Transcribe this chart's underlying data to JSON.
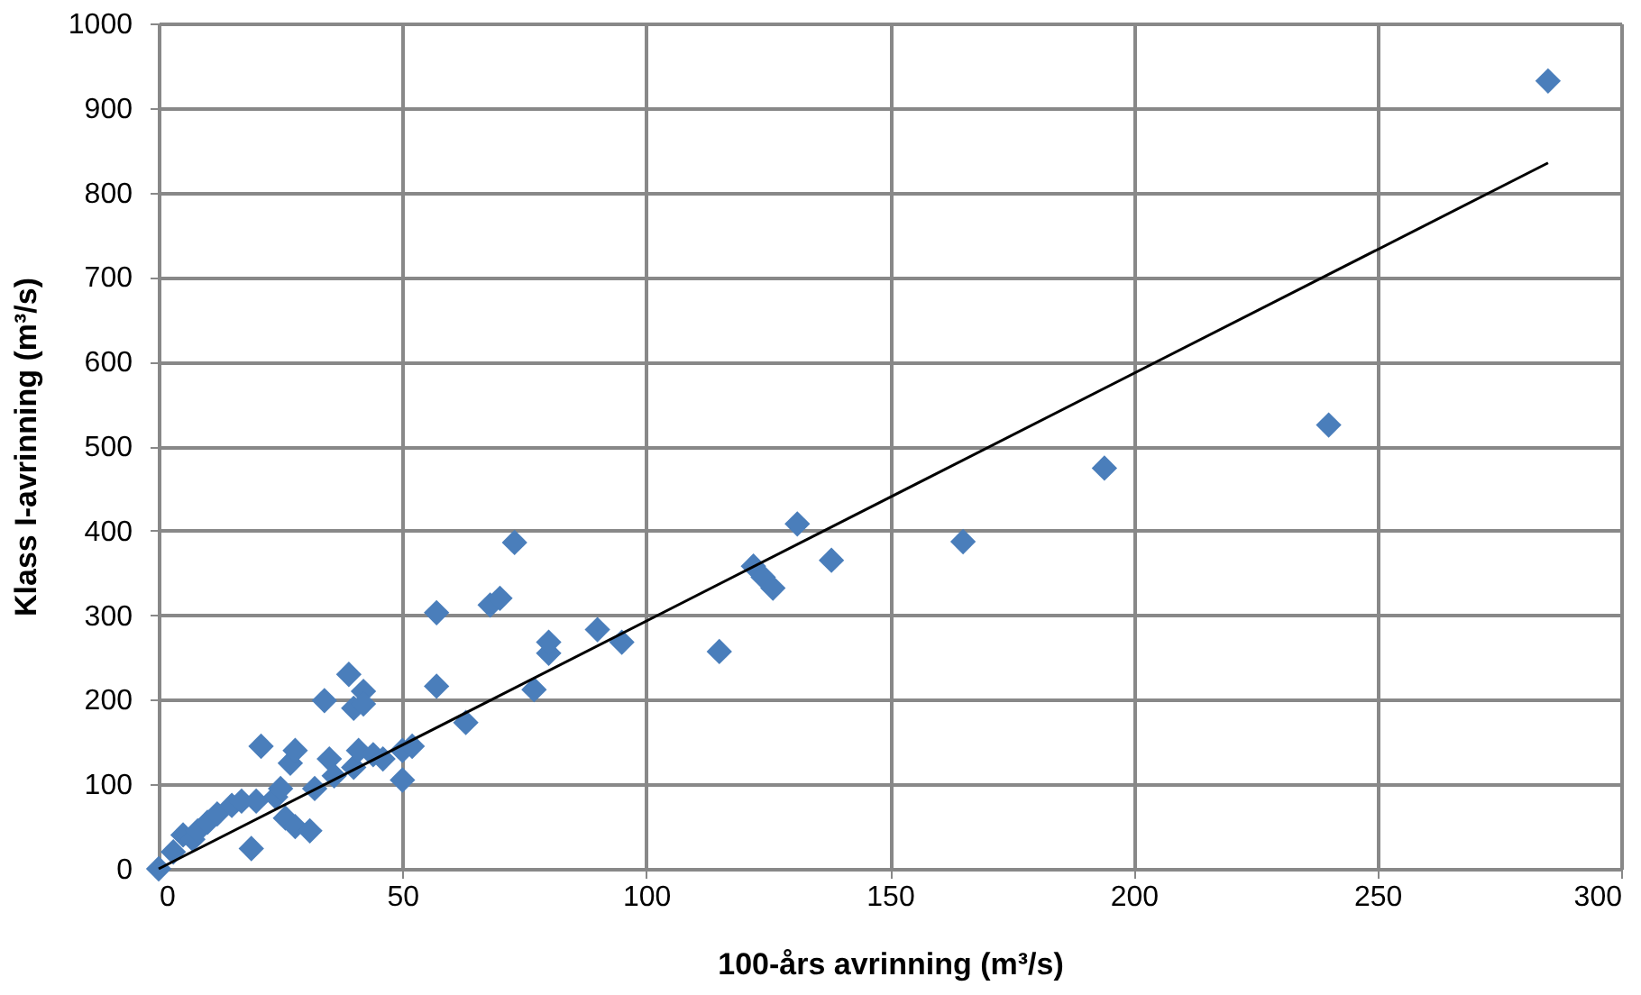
{
  "chart_data": {
    "type": "scatter",
    "xlabel": "100-års avrinning (m³/s)",
    "ylabel": "Klass I-avrinning (m³/s)",
    "xlim": [
      0,
      300
    ],
    "xticks": [
      0,
      50,
      100,
      150,
      200,
      250,
      300
    ],
    "ylim": [
      0,
      1000
    ],
    "yticks": [
      0,
      100,
      200,
      300,
      400,
      500,
      600,
      700,
      800,
      900,
      1000
    ],
    "grid": true,
    "legend": false,
    "series": [
      {
        "type": "scatter",
        "marker": "diamond",
        "color": "#4a7ebb",
        "x": [
          0,
          3,
          5,
          7,
          8,
          10,
          12,
          15,
          17,
          19,
          20,
          21,
          24,
          25,
          26,
          27,
          28,
          28,
          31,
          32,
          34,
          35,
          36,
          39,
          40,
          40,
          41,
          42,
          42,
          44,
          46,
          50,
          50,
          52,
          57,
          57,
          63,
          68,
          70,
          73,
          77,
          80,
          80,
          90,
          95,
          115,
          122,
          124,
          126,
          131,
          138,
          165,
          194,
          240,
          285
        ],
        "values": [
          0,
          20,
          40,
          35,
          45,
          55,
          65,
          75,
          80,
          24,
          80,
          145,
          85,
          95,
          60,
          125,
          140,
          50,
          45,
          95,
          199,
          130,
          110,
          230,
          190,
          120,
          140,
          210,
          195,
          135,
          130,
          105,
          140,
          145,
          303,
          216,
          173,
          312,
          320,
          386,
          212,
          255,
          268,
          283,
          268,
          257,
          358,
          345,
          332,
          408,
          365,
          387,
          474,
          525,
          932
        ]
      },
      {
        "type": "line",
        "color": "#000000",
        "x": [
          0,
          285
        ],
        "values": [
          0,
          835
        ]
      }
    ]
  }
}
